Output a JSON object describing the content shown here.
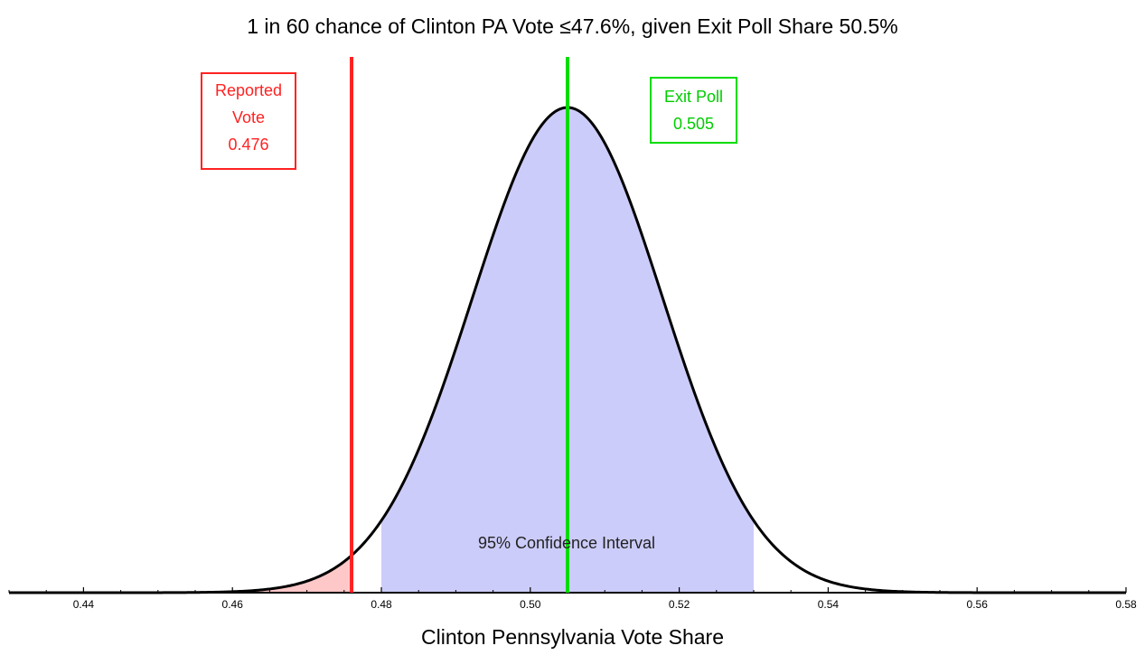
{
  "chart_data": {
    "type": "area",
    "title": "1 in 60 chance of Clinton PA Vote ≤47.6%, given Exit Poll Share 50.5%",
    "xlabel": "Clinton Pennsylvania Vote Share",
    "ylabel": "",
    "xlim": [
      0.43,
      0.58
    ],
    "x_ticks": [
      "0.44",
      "0.46",
      "0.48",
      "0.50",
      "0.52",
      "0.54",
      "0.56",
      "0.58"
    ],
    "distribution": {
      "kind": "normal",
      "mean": 0.505,
      "sd": 0.0128
    },
    "shaded_regions": [
      {
        "from": 0.43,
        "to": 0.476,
        "color": "#ffc8c8"
      },
      {
        "from": 0.48,
        "to": 0.53,
        "color": "#ccccfa"
      }
    ],
    "grid": false,
    "annotations": {
      "reported": {
        "lines": [
          "Reported",
          "Vote",
          "0.476"
        ],
        "x": 0.476,
        "color": "#ff2222"
      },
      "exit_poll": {
        "lines": [
          "Exit Poll",
          "0.505"
        ],
        "x": 0.505,
        "color": "#00dd00"
      },
      "confidence_interval": {
        "label": "95% Confidence Interval"
      }
    }
  }
}
